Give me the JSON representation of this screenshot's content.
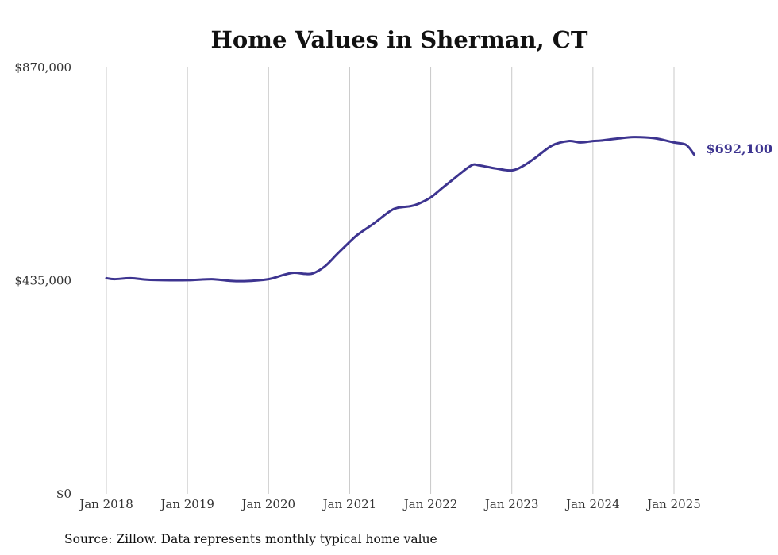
{
  "chart_data": {
    "type": "line",
    "title": "Home Values in Sherman, CT",
    "source": "Source: Zillow. Data represents monthly typical home value",
    "line_color": "#3d3490",
    "grid_color": "#c8c8c8",
    "ylim": [
      0,
      870000
    ],
    "yticks": [
      {
        "value": 0,
        "label": "$0"
      },
      {
        "value": 435000,
        "label": "$435,000"
      },
      {
        "value": 870000,
        "label": "$870,000"
      }
    ],
    "xticks": [
      {
        "value": 2018.0,
        "label": "Jan 2018"
      },
      {
        "value": 2019.0,
        "label": "Jan 2019"
      },
      {
        "value": 2020.0,
        "label": "Jan 2020"
      },
      {
        "value": 2021.0,
        "label": "Jan 2021"
      },
      {
        "value": 2022.0,
        "label": "Jan 2022"
      },
      {
        "value": 2023.0,
        "label": "Jan 2023"
      },
      {
        "value": 2024.0,
        "label": "Jan 2024"
      },
      {
        "value": 2025.0,
        "label": "Jan 2025"
      }
    ],
    "end_label": "$692,100",
    "series": [
      {
        "x": [
          2018.0,
          2018.1,
          2018.3,
          2018.5,
          2018.7,
          2019.0,
          2019.3,
          2019.5,
          2019.7,
          2020.0,
          2020.15,
          2020.3,
          2020.45,
          2020.55,
          2020.7,
          2020.85,
          2021.0,
          2021.1,
          2021.3,
          2021.5,
          2021.6,
          2021.75,
          2021.85,
          2022.0,
          2022.15,
          2022.3,
          2022.5,
          2022.6,
          2022.8,
          2023.0,
          2023.15,
          2023.3,
          2023.5,
          2023.7,
          2023.85,
          2024.0,
          2024.1,
          2024.3,
          2024.5,
          2024.75,
          2025.0,
          2025.15,
          2025.25
        ],
        "y": [
          440000,
          438000,
          440000,
          437000,
          436000,
          436000,
          438000,
          435000,
          434000,
          438000,
          445000,
          451000,
          449000,
          450000,
          465000,
          490000,
          514000,
          529000,
          552000,
          577000,
          584000,
          587000,
          592000,
          605000,
          625000,
          645000,
          670000,
          670000,
          664000,
          660000,
          670000,
          687000,
          711000,
          720000,
          717000,
          720000,
          721000,
          725000,
          728000,
          726000,
          717000,
          712000,
          692100
        ]
      }
    ]
  }
}
